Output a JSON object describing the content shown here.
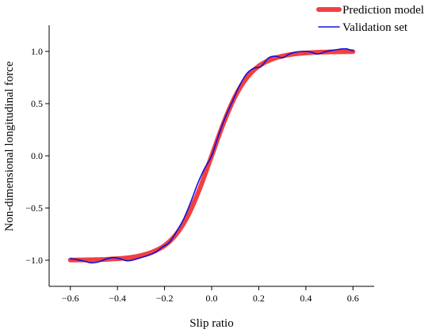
{
  "chart_data": {
    "type": "line",
    "xlabel": "Slip ratio",
    "ylabel": "Non-dimensional longitudinal force",
    "xlim": [
      -0.69,
      0.69
    ],
    "ylim": [
      -1.25,
      1.25
    ],
    "xticks": [
      -0.6,
      -0.4,
      -0.2,
      0.0,
      0.2,
      0.4,
      0.6
    ],
    "xtick_labels": [
      "−0.6",
      "−0.4",
      "−0.2",
      "0.0",
      "0.2",
      "0.4",
      "0.6"
    ],
    "yticks": [
      1.0,
      0.5,
      0.0,
      -0.5,
      -1.0
    ],
    "ytick_labels": [
      "1.0",
      "0.5",
      "0.0",
      "−0.5",
      "−1.0"
    ],
    "grid": false,
    "legend_position": "top-right",
    "series": [
      {
        "name": "Prediction model",
        "color": "#f04040",
        "x": [
          -0.6,
          -0.55,
          -0.5,
          -0.45,
          -0.4,
          -0.35,
          -0.3,
          -0.25,
          -0.2,
          -0.15,
          -0.1,
          -0.05,
          0.0,
          0.05,
          0.1,
          0.15,
          0.2,
          0.25,
          0.3,
          0.35,
          0.4,
          0.45,
          0.5,
          0.55,
          0.6
        ],
        "y": [
          -0.998,
          -0.997,
          -0.995,
          -0.992,
          -0.985,
          -0.975,
          -0.955,
          -0.92,
          -0.86,
          -0.75,
          -0.57,
          -0.31,
          0.0,
          0.31,
          0.57,
          0.75,
          0.86,
          0.92,
          0.955,
          0.975,
          0.985,
          0.992,
          0.995,
          0.997,
          0.998
        ]
      },
      {
        "name": "Validation set",
        "color": "#1010e0",
        "x": [
          -0.6,
          -0.57,
          -0.54,
          -0.51,
          -0.48,
          -0.45,
          -0.42,
          -0.39,
          -0.36,
          -0.33,
          -0.3,
          -0.27,
          -0.24,
          -0.21,
          -0.18,
          -0.15,
          -0.12,
          -0.09,
          -0.06,
          -0.03,
          0.0,
          0.03,
          0.06,
          0.09,
          0.12,
          0.15,
          0.18,
          0.21,
          0.24,
          0.27,
          0.3,
          0.33,
          0.36,
          0.39,
          0.42,
          0.45,
          0.48,
          0.51,
          0.54,
          0.57,
          0.6
        ],
        "y": [
          -0.985,
          -0.995,
          -1.01,
          -1.025,
          -1.015,
          -0.99,
          -0.975,
          -0.985,
          -1.005,
          -0.995,
          -0.975,
          -0.955,
          -0.925,
          -0.875,
          -0.83,
          -0.73,
          -0.61,
          -0.45,
          -0.27,
          -0.12,
          0.0,
          0.2,
          0.38,
          0.53,
          0.68,
          0.79,
          0.84,
          0.855,
          0.935,
          0.955,
          0.94,
          0.975,
          0.995,
          1.0,
          0.995,
          0.975,
          0.995,
          1.01,
          1.02,
          1.025,
          1.005
        ]
      }
    ]
  }
}
